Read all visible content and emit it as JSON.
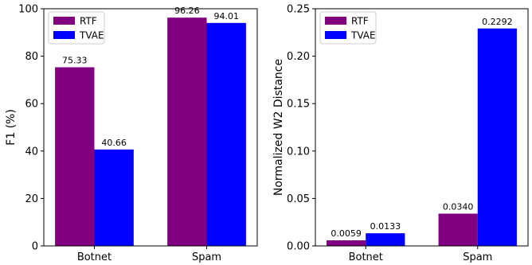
{
  "colors": {
    "RTF": "#800080",
    "TVAE": "#0000ff"
  },
  "chart_data": [
    {
      "type": "bar",
      "categories": [
        "Botnet",
        "Spam"
      ],
      "series": [
        {
          "name": "RTF",
          "values": [
            75.33,
            96.26
          ]
        },
        {
          "name": "TVAE",
          "values": [
            40.66,
            94.01
          ]
        }
      ],
      "value_labels": [
        [
          "75.33",
          "96.26"
        ],
        [
          "40.66",
          "94.01"
        ]
      ],
      "title": "",
      "xlabel": "",
      "ylabel": "F1 (%)",
      "ylim": [
        0,
        100
      ],
      "yticks": [
        0,
        20,
        40,
        60,
        80,
        100
      ],
      "ytick_labels": [
        "0",
        "20",
        "40",
        "60",
        "80",
        "100"
      ],
      "grid": false,
      "legend": "top-left"
    },
    {
      "type": "bar",
      "categories": [
        "Botnet",
        "Spam"
      ],
      "series": [
        {
          "name": "RTF",
          "values": [
            0.0059,
            0.034
          ]
        },
        {
          "name": "TVAE",
          "values": [
            0.0133,
            0.2292
          ]
        }
      ],
      "value_labels": [
        [
          "0.0059",
          "0.0340"
        ],
        [
          "0.0133",
          "0.2292"
        ]
      ],
      "title": "",
      "xlabel": "",
      "ylabel": "Normalized W2 Distance",
      "ylim": [
        0,
        0.25
      ],
      "yticks": [
        0,
        0.05,
        0.1,
        0.15,
        0.2,
        0.25
      ],
      "ytick_labels": [
        "0.00",
        "0.05",
        "0.10",
        "0.15",
        "0.20",
        "0.25"
      ],
      "grid": false,
      "legend": "top-left"
    }
  ]
}
